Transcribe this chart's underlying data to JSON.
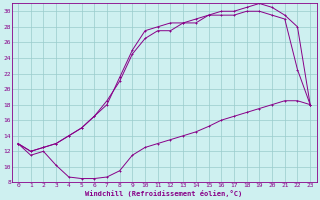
{
  "xlabel": "Windchill (Refroidissement éolien,°C)",
  "background_color": "#cef0f0",
  "line_color": "#880088",
  "grid_color": "#99cccc",
  "xlim": [
    -0.5,
    23.5
  ],
  "ylim": [
    8,
    31
  ],
  "xticks": [
    0,
    1,
    2,
    3,
    4,
    5,
    6,
    7,
    8,
    9,
    10,
    11,
    12,
    13,
    14,
    15,
    16,
    17,
    18,
    19,
    20,
    21,
    22,
    23
  ],
  "yticks": [
    8,
    10,
    12,
    14,
    16,
    18,
    20,
    22,
    24,
    26,
    28,
    30
  ],
  "line1_x": [
    0,
    1,
    2,
    3,
    4,
    5,
    6,
    7,
    8,
    9,
    10,
    11,
    12,
    13,
    14,
    15,
    16,
    17,
    18,
    19,
    20,
    21,
    22,
    23
  ],
  "line1_y": [
    13.0,
    11.5,
    12.0,
    10.2,
    8.7,
    8.5,
    8.5,
    8.7,
    9.5,
    11.5,
    12.5,
    13.0,
    13.5,
    14.0,
    14.5,
    15.2,
    16.0,
    16.5,
    17.0,
    17.5,
    18.0,
    18.5,
    18.5,
    18.0
  ],
  "line2_x": [
    0,
    1,
    2,
    3,
    4,
    5,
    6,
    7,
    8,
    9,
    10,
    11,
    12,
    13,
    14,
    15,
    16,
    17,
    18,
    19,
    20,
    21,
    22,
    23
  ],
  "line2_y": [
    13.0,
    12.0,
    12.5,
    13.0,
    14.0,
    15.0,
    16.5,
    18.5,
    21.0,
    24.5,
    26.5,
    27.5,
    27.5,
    28.5,
    28.5,
    29.5,
    29.5,
    29.5,
    30.0,
    30.0,
    29.5,
    29.0,
    22.5,
    18.0
  ],
  "line3_x": [
    0,
    1,
    2,
    3,
    4,
    5,
    6,
    7,
    8,
    9,
    10,
    11,
    12,
    13,
    14,
    15,
    16,
    17,
    18,
    19,
    20,
    21,
    22,
    23
  ],
  "line3_y": [
    13.0,
    12.0,
    12.5,
    13.0,
    14.0,
    15.0,
    16.5,
    18.0,
    21.5,
    25.0,
    27.5,
    28.0,
    28.5,
    28.5,
    29.0,
    29.5,
    30.0,
    30.0,
    30.5,
    31.0,
    30.5,
    29.5,
    28.0,
    18.0
  ]
}
